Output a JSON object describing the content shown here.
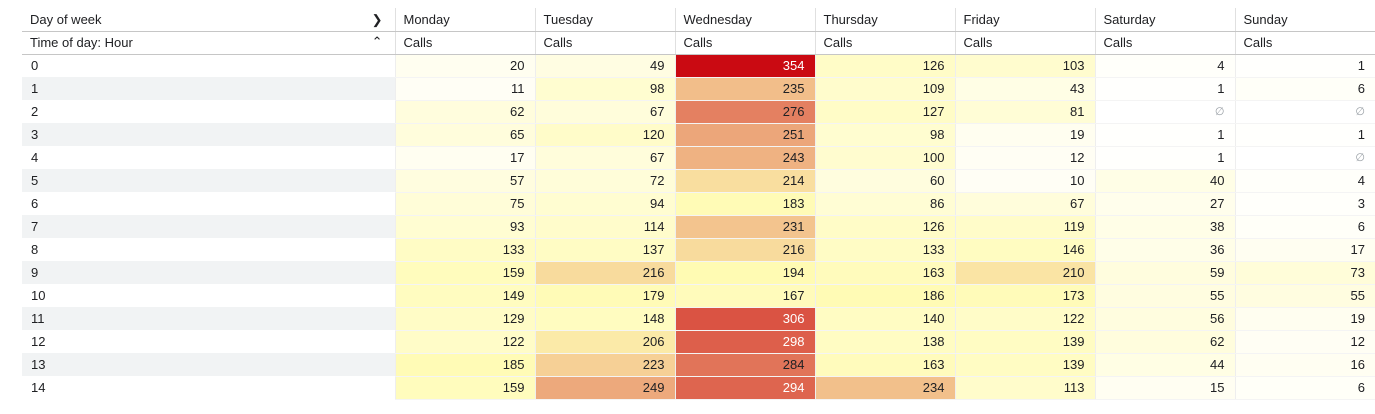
{
  "header": {
    "column_dimension_label": "Day of week",
    "row_dimension_label": "Time of day: Hour",
    "column_expand_icon": "chevron-right-icon",
    "row_collapse_icon": "chevron-up-icon",
    "days": [
      "Monday",
      "Tuesday",
      "Wednesday",
      "Thursday",
      "Friday",
      "Saturday",
      "Sunday"
    ],
    "metric_label": "Calls"
  },
  "null_symbol": "∅",
  "heat_scale": {
    "low": "#ffffff",
    "mid": "#fffbb3",
    "high": "#ca0a12",
    "max": 354
  },
  "rows": [
    {
      "hour": "0",
      "values": [
        20,
        49,
        354,
        126,
        103,
        4,
        1
      ]
    },
    {
      "hour": "1",
      "values": [
        11,
        98,
        235,
        109,
        43,
        1,
        6
      ]
    },
    {
      "hour": "2",
      "values": [
        62,
        67,
        276,
        127,
        81,
        null,
        null
      ]
    },
    {
      "hour": "3",
      "values": [
        65,
        120,
        251,
        98,
        19,
        1,
        1
      ]
    },
    {
      "hour": "4",
      "values": [
        17,
        67,
        243,
        100,
        12,
        1,
        null
      ]
    },
    {
      "hour": "5",
      "values": [
        57,
        72,
        214,
        60,
        10,
        40,
        4
      ]
    },
    {
      "hour": "6",
      "values": [
        75,
        94,
        183,
        86,
        67,
        27,
        3
      ]
    },
    {
      "hour": "7",
      "values": [
        93,
        114,
        231,
        126,
        119,
        38,
        6
      ]
    },
    {
      "hour": "8",
      "values": [
        133,
        137,
        216,
        133,
        146,
        36,
        17
      ]
    },
    {
      "hour": "9",
      "values": [
        159,
        216,
        194,
        163,
        210,
        59,
        73
      ]
    },
    {
      "hour": "10",
      "values": [
        149,
        179,
        167,
        186,
        173,
        55,
        55
      ]
    },
    {
      "hour": "11",
      "values": [
        129,
        148,
        306,
        140,
        122,
        56,
        19
      ]
    },
    {
      "hour": "12",
      "values": [
        122,
        206,
        298,
        138,
        139,
        62,
        12
      ]
    },
    {
      "hour": "13",
      "values": [
        185,
        223,
        284,
        163,
        139,
        44,
        16
      ]
    },
    {
      "hour": "14",
      "values": [
        159,
        249,
        294,
        234,
        113,
        15,
        6
      ]
    }
  ]
}
